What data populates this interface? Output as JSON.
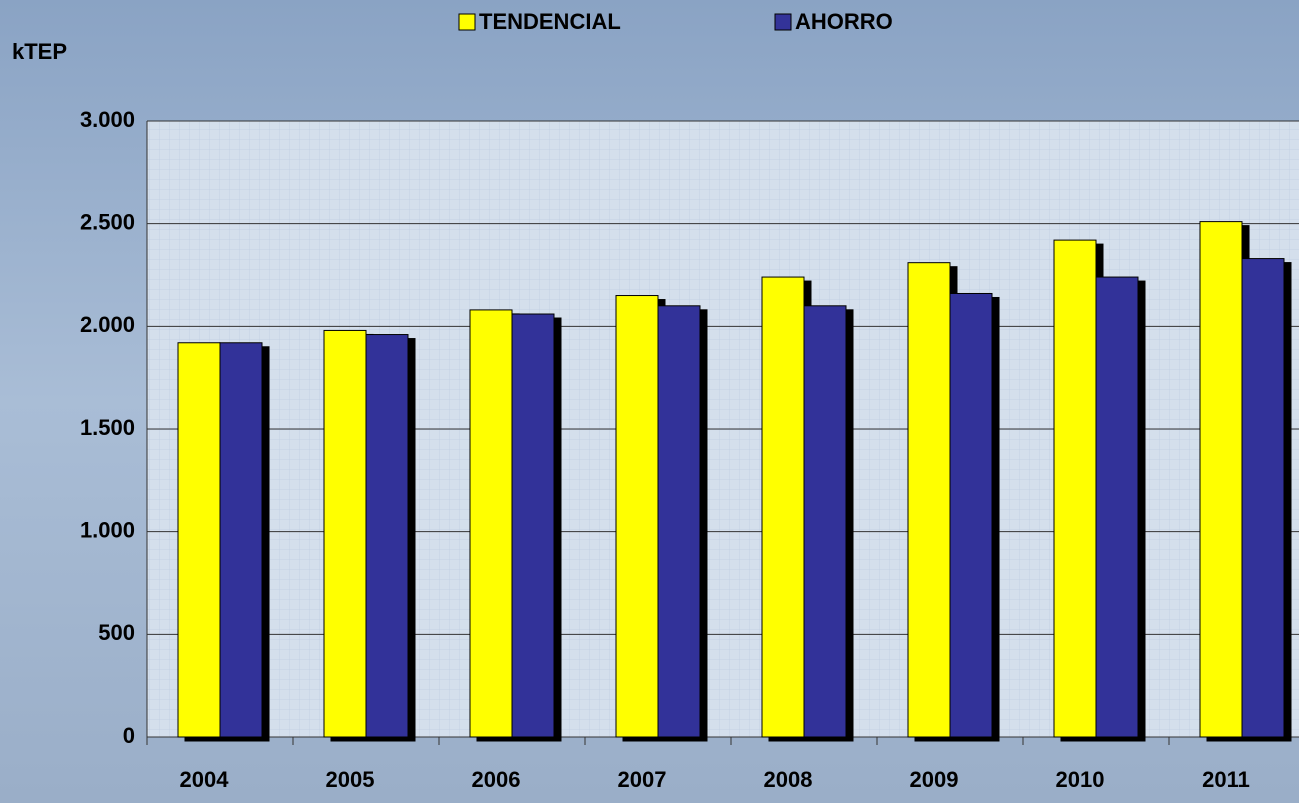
{
  "chart_data": {
    "type": "bar",
    "y_label": "kTEP",
    "categories": [
      "2004",
      "2005",
      "2006",
      "2007",
      "2008",
      "2009",
      "2010",
      "2011"
    ],
    "series": [
      {
        "name": "TENDENCIAL",
        "color": "#ffff00",
        "values": [
          1920,
          1980,
          2080,
          2150,
          2240,
          2310,
          2420,
          2510
        ]
      },
      {
        "name": "AHORRO",
        "color": "#333399",
        "values": [
          1920,
          1960,
          2060,
          2100,
          2100,
          2160,
          2240,
          2330
        ]
      }
    ],
    "ylim": [
      0,
      3000
    ],
    "yticks": [
      0,
      500,
      {
        "value": 1000,
        "label": "1.000"
      },
      {
        "value": 1500,
        "label": "1.500"
      },
      {
        "value": 2000,
        "label": "2.000"
      },
      {
        "value": 2500,
        "label": "2.500"
      },
      {
        "value": 3000,
        "label": "3.000"
      }
    ],
    "grid": true,
    "legend": "top"
  }
}
